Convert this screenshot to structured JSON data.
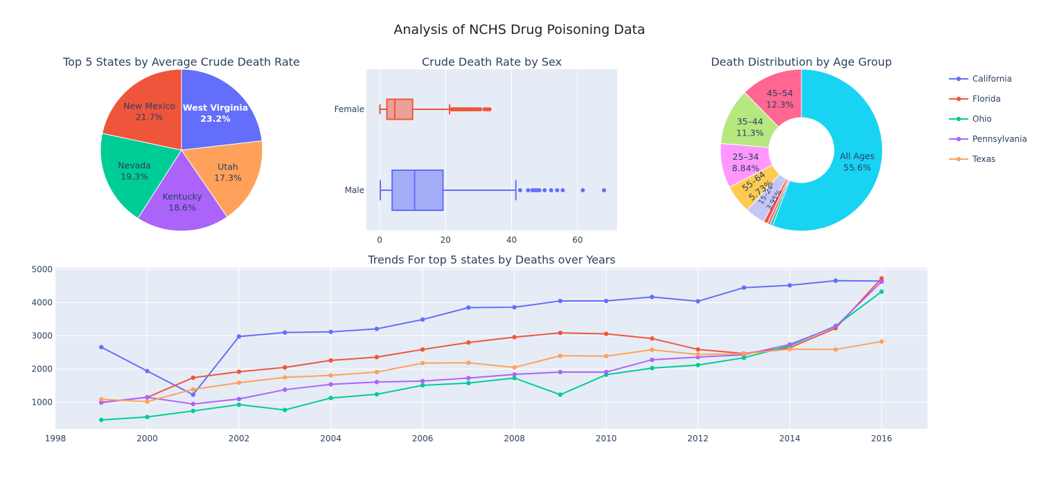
{
  "title": "Analysis of NCHS Drug Poisoning Data",
  "colors": {
    "blue": "#636efa",
    "red": "#ef553b",
    "green": "#00cc96",
    "purple": "#ab63fa",
    "orange": "#ffa15a",
    "cyan": "#19d3f3",
    "pink": "#ff6692",
    "lime": "#b6e880",
    "magenta": "#ff97ff",
    "yellow": "#fecb52",
    "plotbg": "#e5ecf6",
    "text": "#2a3f5f"
  },
  "chart_data": [
    {
      "type": "pie",
      "title": "Top 5 States by Average Crude Death Rate",
      "slices": [
        {
          "label": "West Virginia",
          "percent_text": "23.2%",
          "value": 23.2,
          "color": "#636efa",
          "text_color": "#ffffff"
        },
        {
          "label": "Utah",
          "percent_text": "17.3%",
          "value": 17.3,
          "color": "#ffa15a",
          "text_color": "#2a3f5f"
        },
        {
          "label": "Kentucky",
          "percent_text": "18.6%",
          "value": 18.6,
          "color": "#ab63fa",
          "text_color": "#2a3f5f"
        },
        {
          "label": "Nevada",
          "percent_text": "19.3%",
          "value": 19.3,
          "color": "#00cc96",
          "text_color": "#2a3f5f"
        },
        {
          "label": "New Mexico",
          "percent_text": "21.7%",
          "value": 21.7,
          "color": "#ef553b",
          "text_color": "#2a3f5f"
        }
      ]
    },
    {
      "type": "box",
      "title": "Crude Death Rate by Sex",
      "xlim": [
        -4,
        72
      ],
      "xticks": [
        0,
        20,
        40,
        60
      ],
      "categories": [
        {
          "name": "Female",
          "color": "#ef553b",
          "fill": "rgba(239,85,59,0.5)",
          "min": 0.1,
          "q1": 2.2,
          "median": 4.6,
          "q3": 10.0,
          "max": 21.2,
          "outliers": [
            21.8,
            22.3,
            22.8,
            23.3,
            23.8,
            24.3,
            24.8,
            25.3,
            25.8,
            26.3,
            26.8,
            27.3,
            28,
            28.6,
            29.2,
            29.8,
            30.5,
            31.8,
            32.6,
            33.3
          ]
        },
        {
          "name": "Male",
          "color": "#636efa",
          "fill": "rgba(99,110,250,0.5)",
          "min": 0.2,
          "q1": 3.8,
          "median": 10.6,
          "q3": 19.2,
          "max": 41.3,
          "outliers": [
            42.6,
            45,
            46.3,
            47,
            47.8,
            48.4,
            50,
            52,
            53.8,
            55.5,
            61.6,
            68
          ]
        }
      ]
    },
    {
      "type": "pie",
      "hole": true,
      "title": "Death Distribution by Age Group",
      "slices": [
        {
          "label": "All Ages",
          "percent_text": "55.6%",
          "value": 55.6,
          "color": "#19d3f3"
        },
        {
          "label": "",
          "percent_text": "",
          "value": 0.5,
          "color": "#00cc96"
        },
        {
          "label": "",
          "percent_text": "",
          "value": 0.6,
          "color": "#ff6692"
        },
        {
          "label": "",
          "percent_text": "",
          "value": 0.8,
          "color": "#ef553b"
        },
        {
          "label": "15–24",
          "percent_text": "3.95%",
          "value": 3.95,
          "color": "#c4c6f5"
        },
        {
          "label": "55–64",
          "percent_text": "5.73%",
          "value": 5.73,
          "color": "#fecb52"
        },
        {
          "label": "25–34",
          "percent_text": "8.84%",
          "value": 8.84,
          "color": "#ff97ff"
        },
        {
          "label": "35–44",
          "percent_text": "11.3%",
          "value": 11.3,
          "color": "#b6e880"
        },
        {
          "label": "45–54",
          "percent_text": "12.3%",
          "value": 12.3,
          "color": "#ff6692"
        }
      ]
    },
    {
      "type": "line",
      "title": "Trends For top 5 states by Deaths over Years",
      "xlim": [
        1998,
        2017
      ],
      "ylim": [
        200,
        5050
      ],
      "xticks": [
        1998,
        2000,
        2002,
        2004,
        2006,
        2008,
        2010,
        2012,
        2014,
        2016
      ],
      "yticks": [
        1000,
        2000,
        3000,
        4000,
        5000
      ],
      "x": [
        1999,
        2000,
        2001,
        2002,
        2003,
        2004,
        2005,
        2006,
        2007,
        2008,
        2009,
        2010,
        2011,
        2012,
        2013,
        2014,
        2015,
        2016
      ],
      "series": [
        {
          "name": "California",
          "color": "#636efa",
          "values": [
            2660,
            1940,
            1230,
            2980,
            3100,
            3120,
            3210,
            3490,
            3850,
            3860,
            4050,
            4050,
            4170,
            4040,
            4450,
            4520,
            4660,
            4650
          ]
        },
        {
          "name": "Florida",
          "color": "#ef553b",
          "values": [
            1000,
            1150,
            1740,
            1920,
            2050,
            2260,
            2360,
            2590,
            2800,
            2960,
            3090,
            3060,
            2920,
            2590,
            2470,
            2640,
            3230,
            4730
          ]
        },
        {
          "name": "Ohio",
          "color": "#00cc96",
          "values": [
            470,
            560,
            740,
            930,
            770,
            1130,
            1240,
            1510,
            1580,
            1730,
            1230,
            1830,
            2030,
            2120,
            2340,
            2700,
            3300,
            4330
          ]
        },
        {
          "name": "Pennsylvania",
          "color": "#ab63fa",
          "values": [
            990,
            1150,
            950,
            1100,
            1380,
            1540,
            1610,
            1640,
            1730,
            1840,
            1910,
            1910,
            2280,
            2360,
            2430,
            2740,
            3280,
            4630
          ]
        },
        {
          "name": "Texas",
          "color": "#ffa15a",
          "values": [
            1090,
            1020,
            1390,
            1590,
            1750,
            1810,
            1910,
            2180,
            2190,
            2050,
            2400,
            2390,
            2580,
            2440,
            2460,
            2600,
            2590,
            2830
          ]
        }
      ]
    }
  ]
}
